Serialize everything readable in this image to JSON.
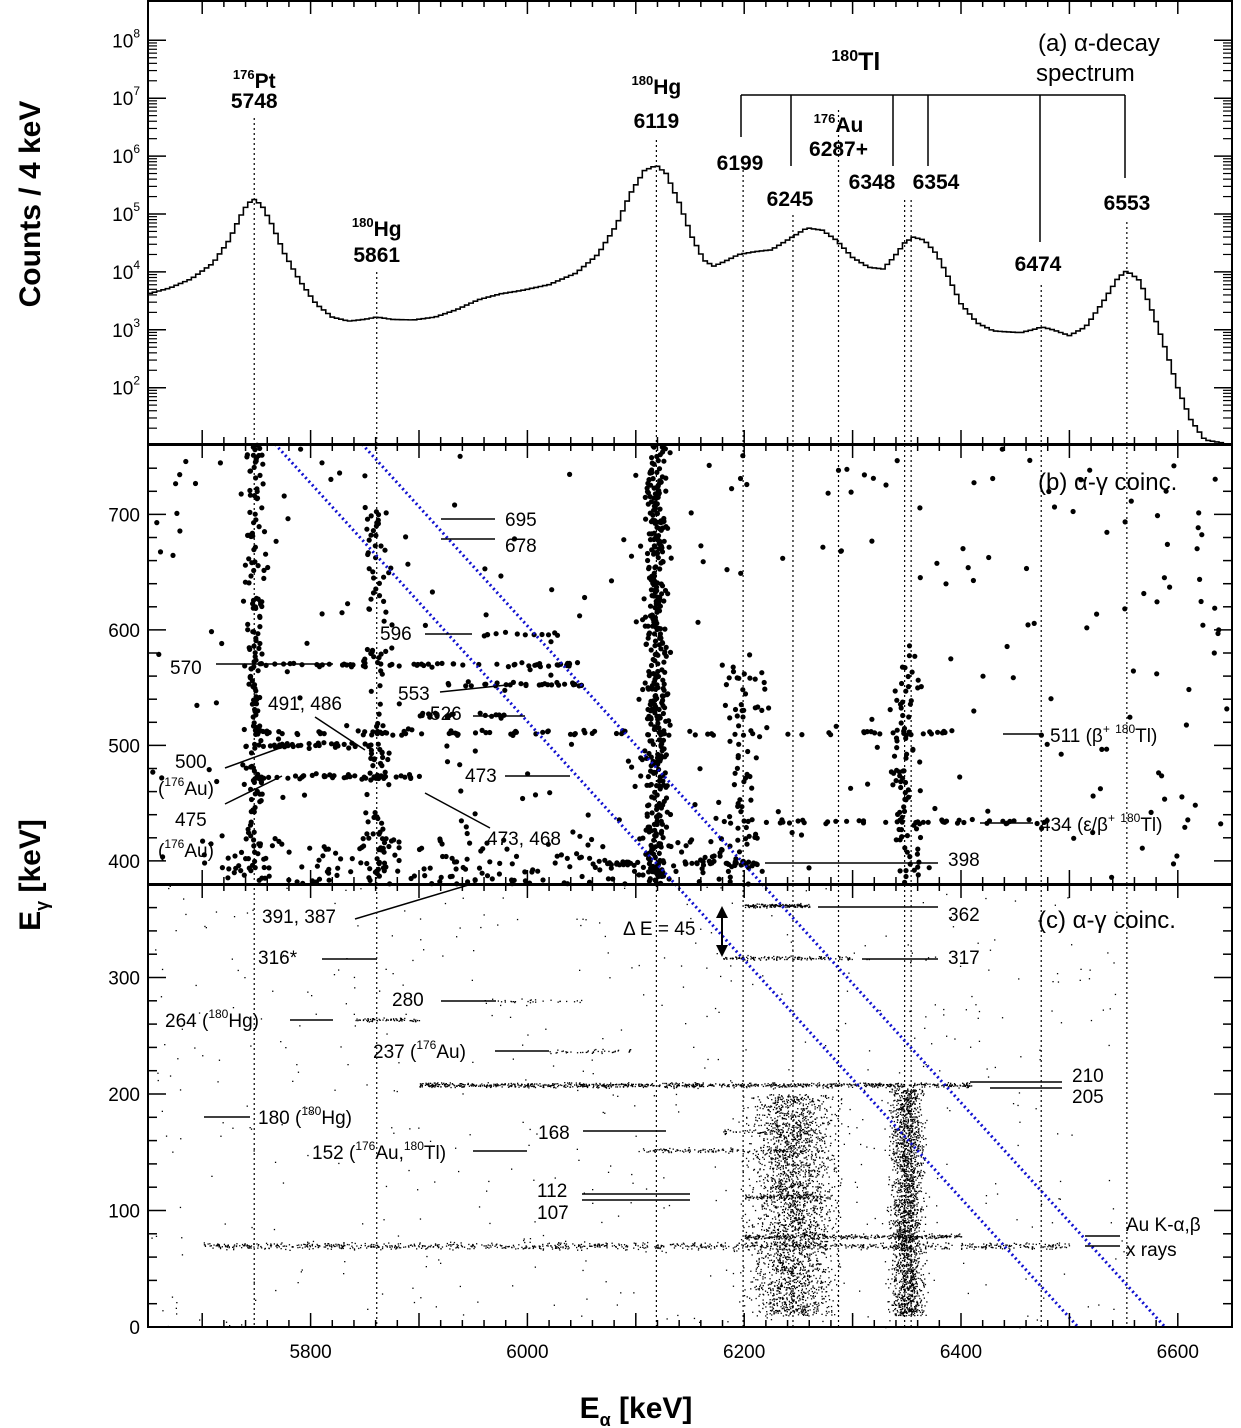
{
  "colors": {
    "ink": "#000000",
    "diag": "#1010d0"
  },
  "axes": {
    "xlabel_main": "E",
    "xlabel_sub": "α",
    "xlabel_unit": " [keV]",
    "ylabel_a": "Counts / 4 keV",
    "ylabel_bc_main": "E",
    "ylabel_bc_sub": "γ",
    "ylabel_bc_unit": " [keV]"
  },
  "chart_data": [
    {
      "panel": "a",
      "type": "line",
      "title": "(a) α-decay",
      "subtitle": "spectrum",
      "xlim": [
        5650,
        6650
      ],
      "ylim_log10": [
        1,
        8.8
      ],
      "log_y": true,
      "y_ticks": [
        {
          "exp": "2",
          "v": 2
        },
        {
          "exp": "3",
          "v": 3
        },
        {
          "exp": "4",
          "v": 4
        },
        {
          "exp": "5",
          "v": 5
        },
        {
          "exp": "6",
          "v": 6
        },
        {
          "exp": "7",
          "v": 7
        },
        {
          "exp": "8",
          "v": 8
        }
      ],
      "spectrum_log10_points": [
        [
          5650,
          3.62
        ],
        [
          5670,
          3.72
        ],
        [
          5690,
          3.88
        ],
        [
          5710,
          4.15
        ],
        [
          5725,
          4.55
        ],
        [
          5735,
          4.95
        ],
        [
          5742,
          5.18
        ],
        [
          5748,
          5.25
        ],
        [
          5755,
          5.15
        ],
        [
          5765,
          4.8
        ],
        [
          5775,
          4.35
        ],
        [
          5790,
          3.85
        ],
        [
          5805,
          3.45
        ],
        [
          5820,
          3.22
        ],
        [
          5835,
          3.15
        ],
        [
          5850,
          3.18
        ],
        [
          5861,
          3.22
        ],
        [
          5875,
          3.18
        ],
        [
          5895,
          3.17
        ],
        [
          5915,
          3.22
        ],
        [
          5935,
          3.35
        ],
        [
          5955,
          3.52
        ],
        [
          5975,
          3.62
        ],
        [
          5995,
          3.68
        ],
        [
          6020,
          3.78
        ],
        [
          6045,
          3.98
        ],
        [
          6065,
          4.3
        ],
        [
          6082,
          4.8
        ],
        [
          6095,
          5.35
        ],
        [
          6108,
          5.75
        ],
        [
          6119,
          5.84
        ],
        [
          6128,
          5.7
        ],
        [
          6140,
          5.2
        ],
        [
          6152,
          4.6
        ],
        [
          6163,
          4.2
        ],
        [
          6172,
          4.1
        ],
        [
          6182,
          4.18
        ],
        [
          6195,
          4.3
        ],
        [
          6210,
          4.35
        ],
        [
          6225,
          4.38
        ],
        [
          6240,
          4.55
        ],
        [
          6258,
          4.76
        ],
        [
          6272,
          4.72
        ],
        [
          6285,
          4.55
        ],
        [
          6300,
          4.25
        ],
        [
          6315,
          4.08
        ],
        [
          6328,
          4.05
        ],
        [
          6338,
          4.25
        ],
        [
          6348,
          4.5
        ],
        [
          6356,
          4.6
        ],
        [
          6366,
          4.55
        ],
        [
          6378,
          4.3
        ],
        [
          6390,
          3.85
        ],
        [
          6400,
          3.45
        ],
        [
          6415,
          3.12
        ],
        [
          6430,
          2.98
        ],
        [
          6455,
          2.95
        ],
        [
          6470,
          3.02
        ],
        [
          6474,
          3.05
        ],
        [
          6485,
          3.0
        ],
        [
          6500,
          2.9
        ],
        [
          6515,
          3.05
        ],
        [
          6530,
          3.45
        ],
        [
          6545,
          3.9
        ],
        [
          6553,
          4.02
        ],
        [
          6565,
          3.85
        ],
        [
          6578,
          3.25
        ],
        [
          6590,
          2.6
        ],
        [
          6600,
          2.0
        ],
        [
          6612,
          1.45
        ],
        [
          6625,
          1.1
        ],
        [
          6640,
          1.05
        ],
        [
          6650,
          1.0
        ]
      ],
      "peak_lines": [
        5748,
        5861,
        6119,
        6199,
        6245,
        6287,
        6348,
        6354,
        6474,
        6553
      ],
      "peaks": [
        {
          "iso": "176",
          "el": "Pt",
          "energy": "5748",
          "x": 5748
        },
        {
          "iso": "180",
          "el": "Hg",
          "energy": "5861",
          "x": 5861
        },
        {
          "iso": "180",
          "el": "Hg",
          "energy": "6119",
          "x": 6119
        },
        {
          "iso": "176",
          "el": "Au",
          "energy": "6287+",
          "x": 6287
        }
      ],
      "tl_label": {
        "iso": "180",
        "el": "Tl"
      },
      "tl_energies": [
        {
          "energy": "6199",
          "x": 6199
        },
        {
          "energy": "6245",
          "x": 6245
        },
        {
          "energy": "6348",
          "x": 6330
        },
        {
          "energy": "6354",
          "x": 6369
        },
        {
          "energy": "6474",
          "x": 6474
        },
        {
          "energy": "6553",
          "x": 6553
        }
      ]
    },
    {
      "panel": "b",
      "type": "scatter",
      "title": "(b) α-γ coinc.",
      "xlim": [
        5650,
        6650
      ],
      "ylim": [
        380,
        760
      ],
      "y_ticks": [
        "400",
        "500",
        "600",
        "700"
      ],
      "line_labels": [
        {
          "text": "695",
          "y": 695
        },
        {
          "text": "678",
          "y": 678
        },
        {
          "text": "596",
          "y": 596
        },
        {
          "text": "570",
          "y": 570
        },
        {
          "text": "553",
          "y": 553
        },
        {
          "text": "526",
          "y": 526
        },
        {
          "text": "491, 486",
          "y": 489
        },
        {
          "text": "500",
          "y": 500
        },
        {
          "text": "473",
          "y": 473
        },
        {
          "text": "475",
          "y": 475
        },
        {
          "text": "473, 468",
          "y": 470
        },
        {
          "text": "511 (β+ 180Tl)",
          "y": 511
        },
        {
          "text": "434 (ε/β+ 180Tl)",
          "y": 434
        },
        {
          "text": "398",
          "y": 398
        }
      ],
      "au_note": "176Au",
      "diagonal_lines": "E_gamma + E_alpha = const"
    },
    {
      "panel": "c",
      "type": "scatter",
      "title": "(c) α-γ coinc.",
      "xlim": [
        5650,
        6650
      ],
      "ylim": [
        0,
        380
      ],
      "y_ticks": [
        "0",
        "100",
        "200",
        "300"
      ],
      "line_labels": [
        {
          "text": "391, 387",
          "y": 389
        },
        {
          "text": "362",
          "y": 362
        },
        {
          "text": "316*",
          "y": 316
        },
        {
          "text": "317",
          "y": 317
        },
        {
          "text": "280",
          "y": 280
        },
        {
          "text": "264 (180Hg)",
          "y": 264
        },
        {
          "text": "237 (176Au)",
          "y": 237
        },
        {
          "text": "210",
          "y": 210
        },
        {
          "text": "205",
          "y": 205
        },
        {
          "text": "180 (180Hg)",
          "y": 180
        },
        {
          "text": "168",
          "y": 168
        },
        {
          "text": "152 (176Au, 180Tl)",
          "y": 152
        },
        {
          "text": "112",
          "y": 112
        },
        {
          "text": "107",
          "y": 107
        },
        {
          "text": "Au K-α,β",
          "y": 85
        },
        {
          "text": "x rays",
          "y": 70
        }
      ],
      "delta_e": "Δ E = 45"
    }
  ],
  "x_ticks": [
    "5800",
    "6000",
    "6200",
    "6400",
    "6600"
  ],
  "labels": {
    "b_511": "511 (β",
    "b_511_sup": "+",
    "b_511_iso": "180",
    "b_511_tail": "Tl)",
    "b_434": "434 (ε/β",
    "b_434_sup": "+",
    "b_434_iso": "180",
    "b_434_tail": "Tl)",
    "b_176au_a": "(",
    "b_176au_iso": "176",
    "b_176au_el": "Au)",
    "c_264": "264 (",
    "c_264_iso": "180",
    "c_264_el": "Hg)",
    "c_237": "237 (",
    "c_237_iso": "176",
    "c_237_el": "Au)",
    "c_180": "180 (",
    "c_180_iso": "180",
    "c_180_el": "Hg)",
    "c_152": "152 (",
    "c_152_iso1": "176",
    "c_152_mid": "Au,",
    "c_152_iso2": "180",
    "c_152_el": "Tl)",
    "delta": "Δ",
    "delta_e": " E = 45"
  }
}
